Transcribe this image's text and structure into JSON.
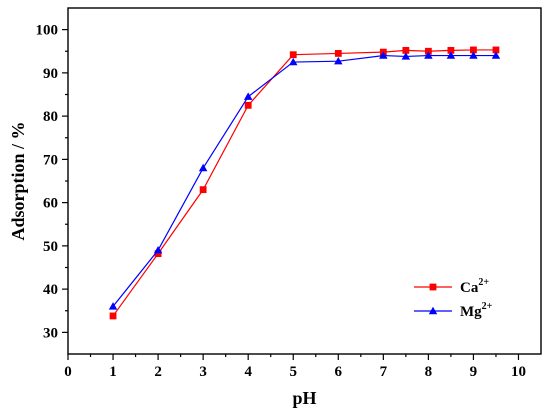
{
  "chart_data": {
    "type": "line",
    "xlabel": "pH",
    "ylabel": "Adsorption / %",
    "xlim": [
      0,
      10.5
    ],
    "ylim": [
      25,
      105
    ],
    "xticks": [
      "0",
      "1",
      "2",
      "3",
      "4",
      "5",
      "6",
      "7",
      "8",
      "9",
      "10"
    ],
    "yticks": [
      "30",
      "40",
      "50",
      "60",
      "70",
      "80",
      "90",
      "100"
    ],
    "grid": false,
    "legend_position": "bottom-right",
    "series": [
      {
        "name": "Ca",
        "name_sup": "2+",
        "color": "#ff0000",
        "marker": "square",
        "x": [
          1,
          2,
          3,
          4,
          5,
          6,
          7,
          7.5,
          8,
          8.5,
          9,
          9.5
        ],
        "y": [
          33.8,
          48.2,
          63.0,
          82.5,
          94.2,
          94.5,
          94.8,
          95.2,
          95.0,
          95.2,
          95.3,
          95.3
        ]
      },
      {
        "name": "Mg",
        "name_sup": "2+",
        "color": "#0000ff",
        "marker": "triangle",
        "x": [
          1,
          2,
          3,
          4,
          5,
          6,
          7,
          7.5,
          8,
          8.5,
          9,
          9.5
        ],
        "y": [
          36.0,
          49.0,
          68.0,
          84.5,
          92.5,
          92.7,
          94.0,
          93.8,
          94.0,
          94.0,
          94.0,
          94.0
        ]
      }
    ]
  }
}
